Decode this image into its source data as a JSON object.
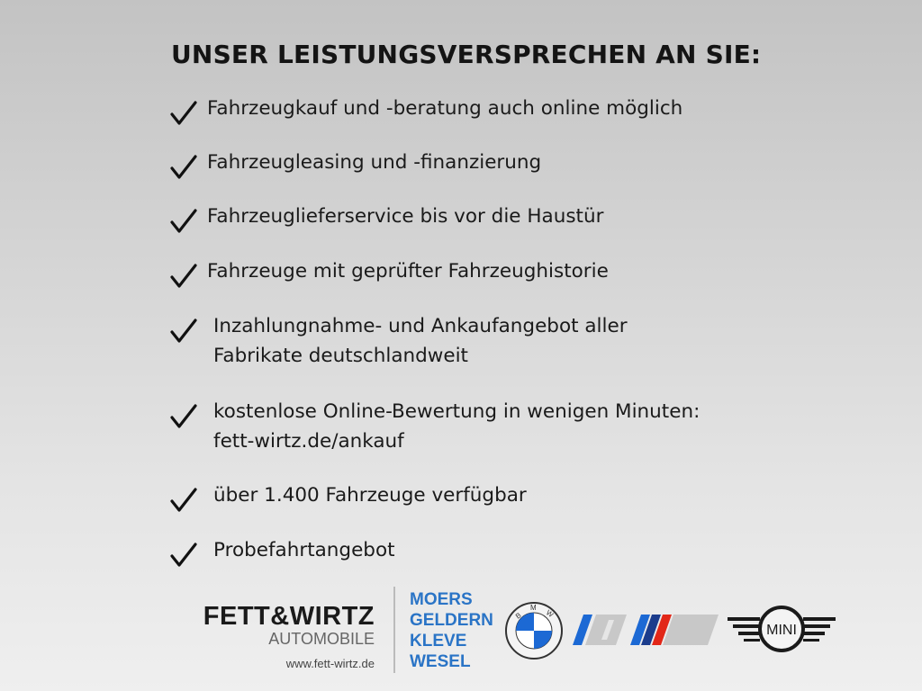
{
  "title": "UNSER LEISTUNGSVERSPRECHEN AN SIE:",
  "items": [
    {
      "lines": [
        "Fahrzeugkauf und -beratung auch online möglich"
      ]
    },
    {
      "lines": [
        "Fahrzeugleasing und -finanzierung"
      ]
    },
    {
      "lines": [
        "Fahrzeuglieferservice bis vor die Haustür"
      ]
    },
    {
      "lines": [
        "Fahrzeuge mit geprüfter Fahrzeughistorie"
      ]
    },
    {
      "lines": [
        "Inzahlungnahme- und Ankaufangebot aller",
        "Fabrikate deutschlandweit"
      ]
    },
    {
      "lines": [
        "kostenlose Online-Bewertung in wenigen Minuten:",
        "fett-wirtz.de/ankauf"
      ]
    },
    {
      "lines": [
        "über 1.400 Fahrzeuge verfügbar"
      ]
    },
    {
      "lines": [
        "Probefahrtangebot"
      ]
    }
  ],
  "footer": {
    "brand": "FETT&WIRTZ",
    "brand_sub": "AUTOMOBILE",
    "url": "www.fett-wirtz.de",
    "cities": [
      "MOERS",
      "GELDERN",
      "KLEVE",
      "WESEL"
    ],
    "logos": {
      "bmw": "BMW",
      "mini": "MINI"
    },
    "colors": {
      "city_blue": "#2a74c6",
      "bmw_blue": "#1c69d4",
      "m_red": "#e22718"
    }
  }
}
